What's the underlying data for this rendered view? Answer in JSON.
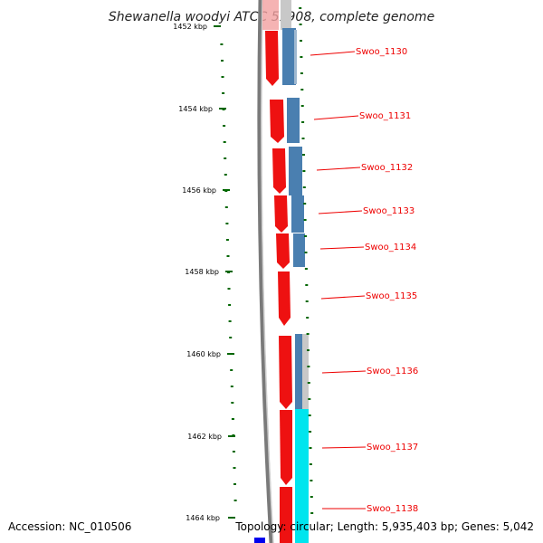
{
  "title": "Shewanella woodyi ATCC 51908, complete genome",
  "footer": {
    "accession": "Accession: NC_010506",
    "topology": "Topology: circular; Length: 5,935,403 bp; Genes: 5,042"
  },
  "colors": {
    "cds_forward": "#ee1111",
    "blast_hit": "#4a7fb0",
    "blast_hit_alt": "#00e5ee",
    "backbone": "#888888",
    "tick": "#006600",
    "label": "#ee0000"
  },
  "ticks": [
    {
      "label": "1452 kbp"
    },
    {
      "label": "1454 kbp"
    },
    {
      "label": "1456 kbp"
    },
    {
      "label": "1458 kbp"
    },
    {
      "label": "1460 kbp"
    },
    {
      "label": "1462 kbp"
    },
    {
      "label": "1464 kbp"
    }
  ],
  "genes": [
    {
      "label": "Swoo_1130"
    },
    {
      "label": "Swoo_1131"
    },
    {
      "label": "Swoo_1132"
    },
    {
      "label": "Swoo_1133"
    },
    {
      "label": "Swoo_1134"
    },
    {
      "label": "Swoo_1135"
    },
    {
      "label": "Swoo_1136"
    },
    {
      "label": "Swoo_1137"
    },
    {
      "label": "Swoo_1138"
    }
  ]
}
